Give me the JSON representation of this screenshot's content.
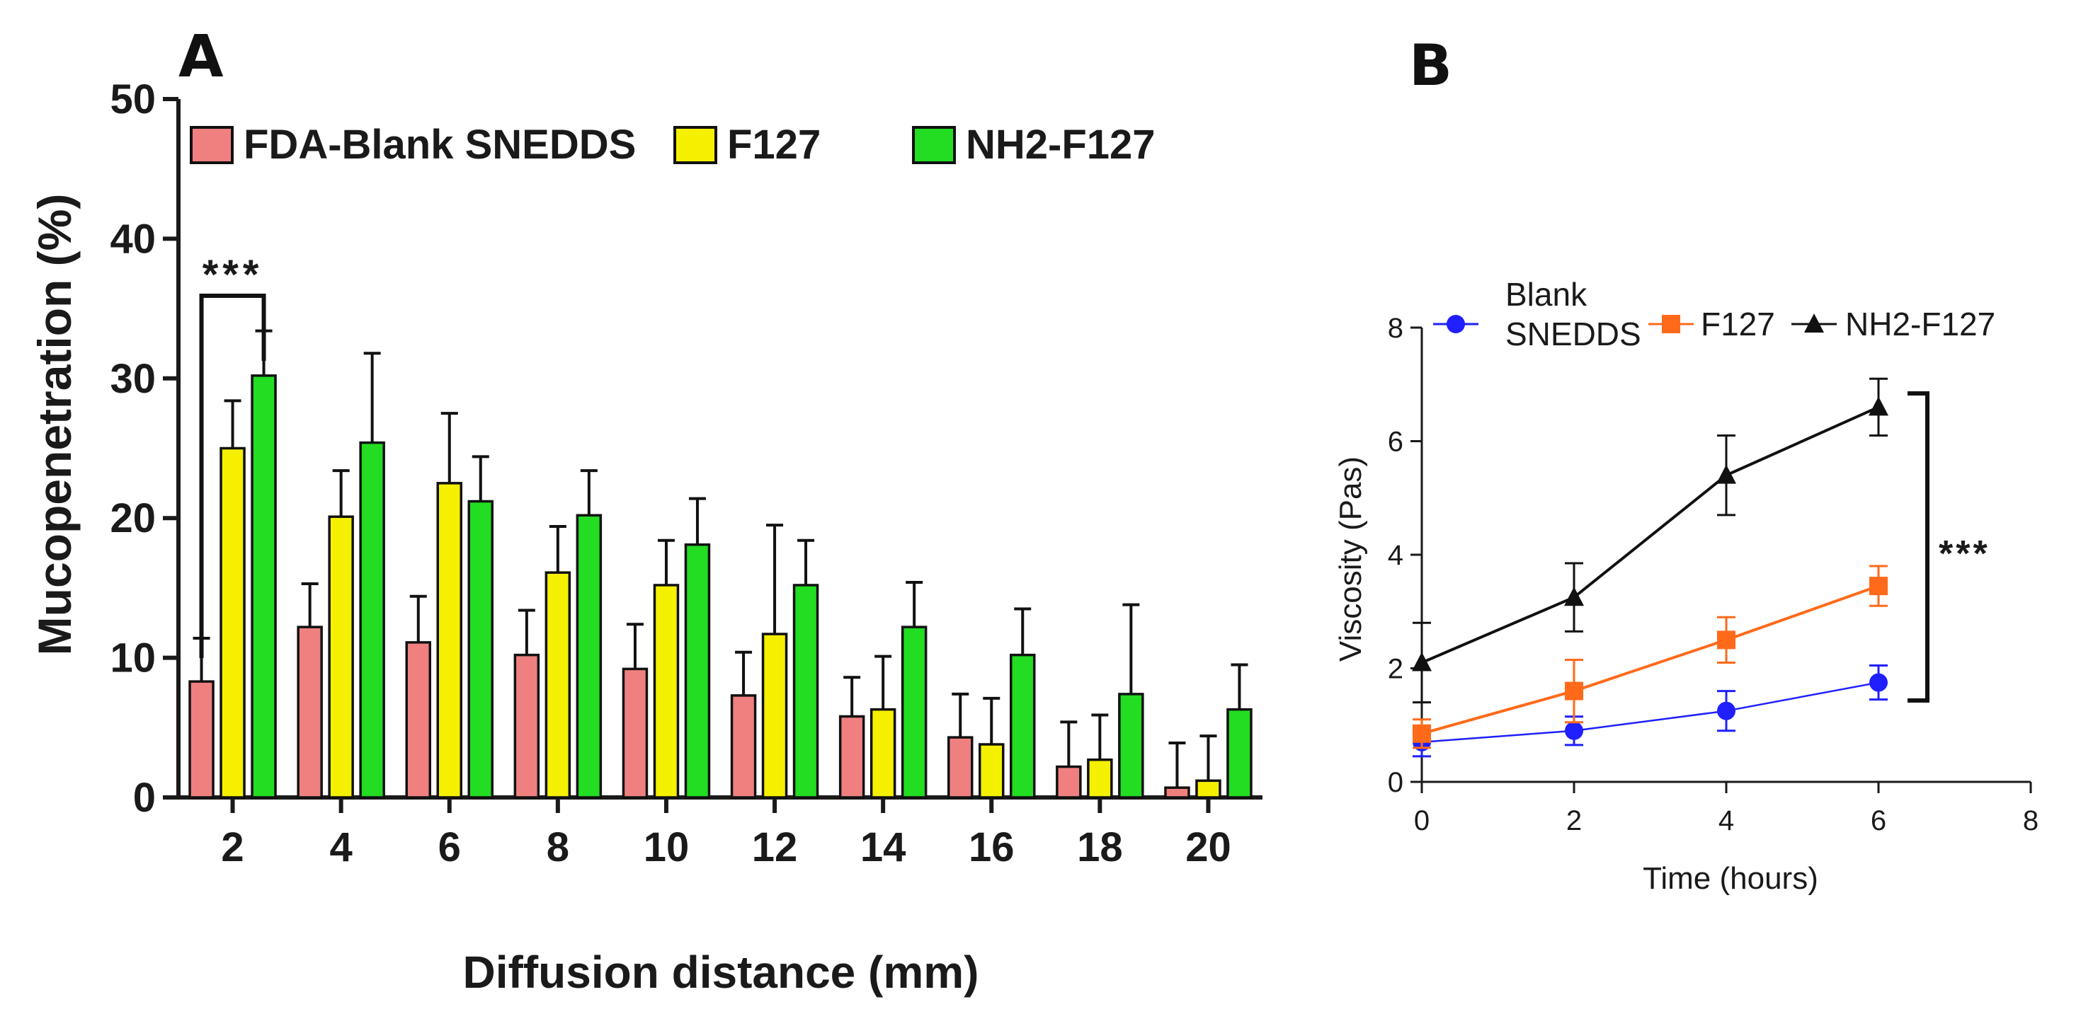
{
  "panel_letters": {
    "a": "A",
    "b": "B"
  },
  "chart_data": [
    {
      "type": "bar",
      "panel": "A",
      "xlabel": "Diffusion distance (mm)",
      "ylabel": "Mucopenetration (%)",
      "ylim": [
        0,
        50
      ],
      "yticks": [
        "0",
        "10",
        "20",
        "30",
        "40",
        "50"
      ],
      "categories": [
        "2",
        "4",
        "6",
        "8",
        "10",
        "12",
        "14",
        "16",
        "18",
        "20"
      ],
      "series": [
        {
          "name": "FDA-Blank SNEDDS",
          "color": "#f08080",
          "values": [
            8.3,
            12.2,
            11.1,
            10.2,
            9.2,
            7.3,
            5.8,
            4.3,
            2.2,
            0.7
          ],
          "errors": [
            3.1,
            3.1,
            3.3,
            3.2,
            3.2,
            3.1,
            2.8,
            3.1,
            3.2,
            3.2
          ]
        },
        {
          "name": "F127",
          "color": "#f5f000",
          "values": [
            25.0,
            20.1,
            22.5,
            16.1,
            15.2,
            11.7,
            6.3,
            3.8,
            2.7,
            1.2
          ],
          "errors": [
            3.4,
            3.3,
            5.0,
            3.3,
            3.2,
            7.8,
            3.8,
            3.3,
            3.2,
            3.2
          ]
        },
        {
          "name": "NH2-F127",
          "color": "#22dd22",
          "values": [
            30.2,
            25.4,
            21.2,
            20.2,
            18.1,
            15.2,
            12.2,
            10.2,
            7.4,
            6.3
          ],
          "errors": [
            3.2,
            6.4,
            3.2,
            3.2,
            3.3,
            3.2,
            3.2,
            3.3,
            6.4,
            3.2
          ]
        }
      ],
      "significance": {
        "label": "***"
      }
    },
    {
      "type": "line",
      "panel": "B",
      "xlabel": "Time (hours)",
      "ylabel": "Viscosity (Pas)",
      "xlim": [
        0,
        8
      ],
      "ylim": [
        0,
        8
      ],
      "xticks": [
        "0",
        "2",
        "4",
        "6",
        "8"
      ],
      "yticks": [
        "0",
        "2",
        "4",
        "6",
        "8"
      ],
      "series": [
        {
          "name": "Blank SNEDDS",
          "name_lines": [
            "Blank",
            "SNEDDS"
          ],
          "color": "#1f1fff",
          "marker": "circle",
          "x": [
            0,
            2,
            4,
            6
          ],
          "y": [
            0.7,
            0.9,
            1.25,
            1.75
          ],
          "errors": [
            0.25,
            0.25,
            0.35,
            0.3
          ]
        },
        {
          "name": "F127",
          "name_lines": [
            "F127"
          ],
          "color": "#ff6a1a",
          "marker": "square",
          "x": [
            0,
            2,
            4,
            6
          ],
          "y": [
            0.85,
            1.6,
            2.5,
            3.45
          ],
          "errors": [
            0.25,
            0.55,
            0.4,
            0.35
          ]
        },
        {
          "name": "NH2-F127",
          "name_lines": [
            "NH2-F127"
          ],
          "color": "#111111",
          "marker": "triangle",
          "x": [
            0,
            2,
            4,
            6
          ],
          "y": [
            2.1,
            3.25,
            5.4,
            6.6
          ],
          "errors": [
            0.7,
            0.6,
            0.7,
            0.5
          ]
        }
      ],
      "significance": {
        "label": "***"
      }
    }
  ]
}
